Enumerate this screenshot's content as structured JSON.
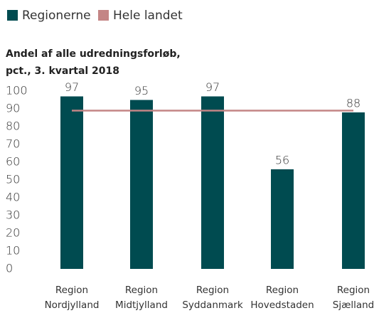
{
  "chart_data": {
    "type": "bar",
    "title": "Andel af alle udredningsforløb,",
    "subtitle": "pct., 3. kvartal 2018",
    "categories": [
      "Region Nordjylland",
      "Region Midtjylland",
      "Region Syddanmark",
      "Region Hovedstaden",
      "Region Sjælland"
    ],
    "series": [
      {
        "name": "Regionerne",
        "color": "#004b50",
        "values": [
          97,
          95,
          97,
          56,
          88
        ]
      },
      {
        "name": "Hele landet",
        "color": "#c48585",
        "type": "line",
        "values": [
          89,
          89,
          89,
          89,
          89
        ]
      }
    ],
    "ylim": [
      0,
      100
    ],
    "yticks": [
      0,
      10,
      20,
      30,
      40,
      50,
      60,
      70,
      80,
      90,
      100
    ],
    "grid": false
  }
}
